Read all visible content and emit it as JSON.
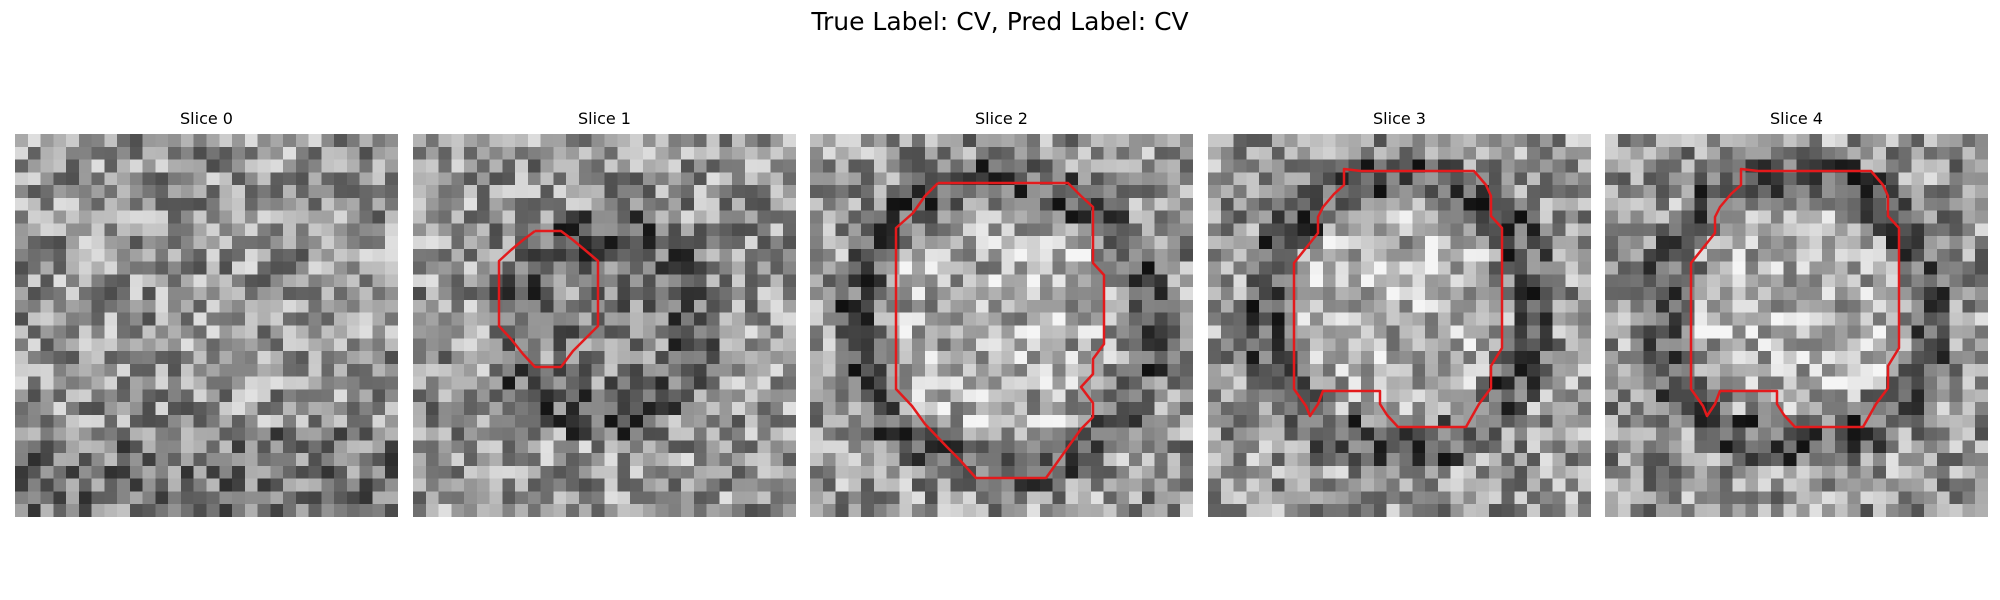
{
  "title": "True Label: CV, Pred Label: CV",
  "contour_color": "#e31a1c",
  "slices": [
    {
      "title": "Slice 0",
      "has_contour": false
    },
    {
      "title": "Slice 1",
      "has_contour": true
    },
    {
      "title": "Slice 2",
      "has_contour": true
    },
    {
      "title": "Slice 3",
      "has_contour": true
    },
    {
      "title": "Slice 4",
      "has_contour": true
    }
  ]
}
